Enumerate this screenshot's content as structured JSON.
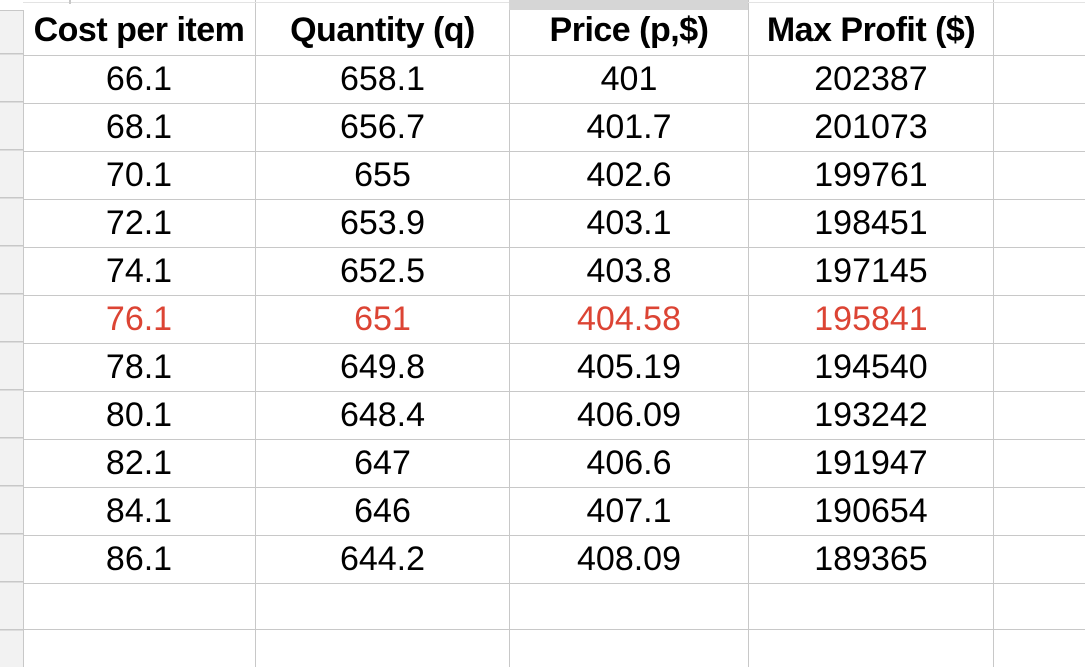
{
  "table": {
    "headers": [
      "Cost per item",
      "Quantity (q)",
      "Price (p,$)",
      "Max Profit ($)",
      ""
    ],
    "rows": [
      [
        "66.1",
        "658.1",
        "401",
        "202387",
        ""
      ],
      [
        "68.1",
        "656.7",
        "401.7",
        "201073",
        ""
      ],
      [
        "70.1",
        "655",
        "402.6",
        "199761",
        ""
      ],
      [
        "72.1",
        "653.9",
        "403.1",
        "198451",
        ""
      ],
      [
        "74.1",
        "652.5",
        "403.8",
        "197145",
        ""
      ],
      [
        "76.1",
        "651",
        "404.58",
        "195841",
        ""
      ],
      [
        "78.1",
        "649.8",
        "405.19",
        "194540",
        ""
      ],
      [
        "80.1",
        "648.4",
        "406.09",
        "193242",
        ""
      ],
      [
        "82.1",
        "647",
        "406.6",
        "191947",
        ""
      ],
      [
        "84.1",
        "646",
        "407.1",
        "190654",
        ""
      ],
      [
        "86.1",
        "644.2",
        "408.09",
        "189365",
        ""
      ]
    ],
    "highlighted_row_index": 5
  },
  "colors": {
    "highlight_text": "#dc4434",
    "grid_line": "#c8c8c8",
    "row_header_fill": "#f2f2f2",
    "column_chip_fill": "#d6d6d6",
    "cell_text": "#000000"
  }
}
